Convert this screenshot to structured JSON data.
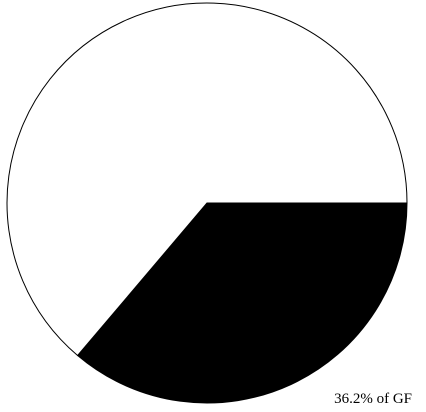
{
  "chart_data": {
    "type": "pie",
    "values": [
      36.2,
      63.8
    ],
    "value_labels": [
      "36.2% of GF",
      null
    ],
    "colors": [
      "#000000",
      "#ffffff"
    ],
    "start_angle": 0,
    "direction": "clockwise"
  }
}
